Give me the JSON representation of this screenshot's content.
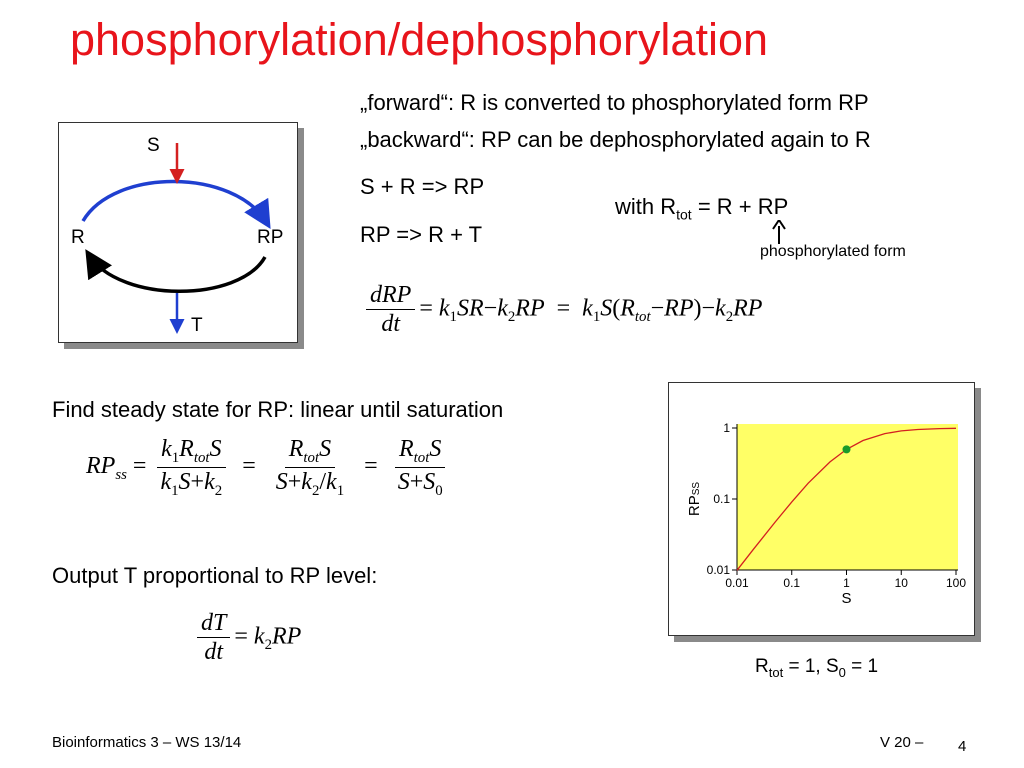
{
  "title": "phosphorylation/dephosphorylation",
  "diagram": {
    "S": "S",
    "R": "R",
    "RP": "RP",
    "T": "T"
  },
  "text": {
    "forward": "„forward“: R is converted to phosphorylated form RP",
    "backward": "„backward“: RP can be dephosphorylated again to R",
    "reaction1": "S + R  =>  RP",
    "reaction2": "RP  =>  R + T",
    "with_prefix": "with R",
    "with_sub": "tot",
    "with_suffix": " = R + RP",
    "phospho_label": "phosphorylated form",
    "steady_state": "Find steady state for RP:  linear until saturation",
    "output": "Output T proportional to RP level:"
  },
  "chart_data": {
    "type": "line",
    "xlabel": "S",
    "ylabel_main": "RP",
    "ylabel_sub": "SS",
    "x_scale": "log",
    "y_scale": "log",
    "xlim": [
      0.01,
      100
    ],
    "ylim": [
      0.01,
      1
    ],
    "x_ticks": [
      "0.01",
      "0.1",
      "1",
      "10",
      "100"
    ],
    "y_ticks": [
      "0.01",
      "0.1",
      "1"
    ],
    "series": [
      {
        "x": [
          0.01,
          0.02,
          0.05,
          0.1,
          0.2,
          0.5,
          1,
          2,
          5,
          10,
          20,
          50,
          100
        ],
        "y": [
          0.0099,
          0.0196,
          0.0476,
          0.0909,
          0.1667,
          0.3333,
          0.5,
          0.6667,
          0.8333,
          0.9091,
          0.9524,
          0.9804,
          0.9901
        ]
      }
    ],
    "highlight_point": {
      "x": 1,
      "y": 0.5
    },
    "background": "#ffff66",
    "line_color": "#d42020",
    "point_color": "#1a9a2a",
    "caption_R": "R",
    "caption_R_sub": "tot",
    "caption_mid": " = 1,  S",
    "caption_S_sub": "0",
    "caption_end": " = 1"
  },
  "footer": {
    "left": "Bioinformatics 3 – WS 13/14",
    "right": "V 20  –",
    "page": "4"
  },
  "colors": {
    "title": "#e8141b",
    "forward_arrow": "#1f3fd0",
    "backward_arrow": "#000000",
    "S_arrow": "#d42020",
    "T_arrow": "#1f3fd0"
  }
}
